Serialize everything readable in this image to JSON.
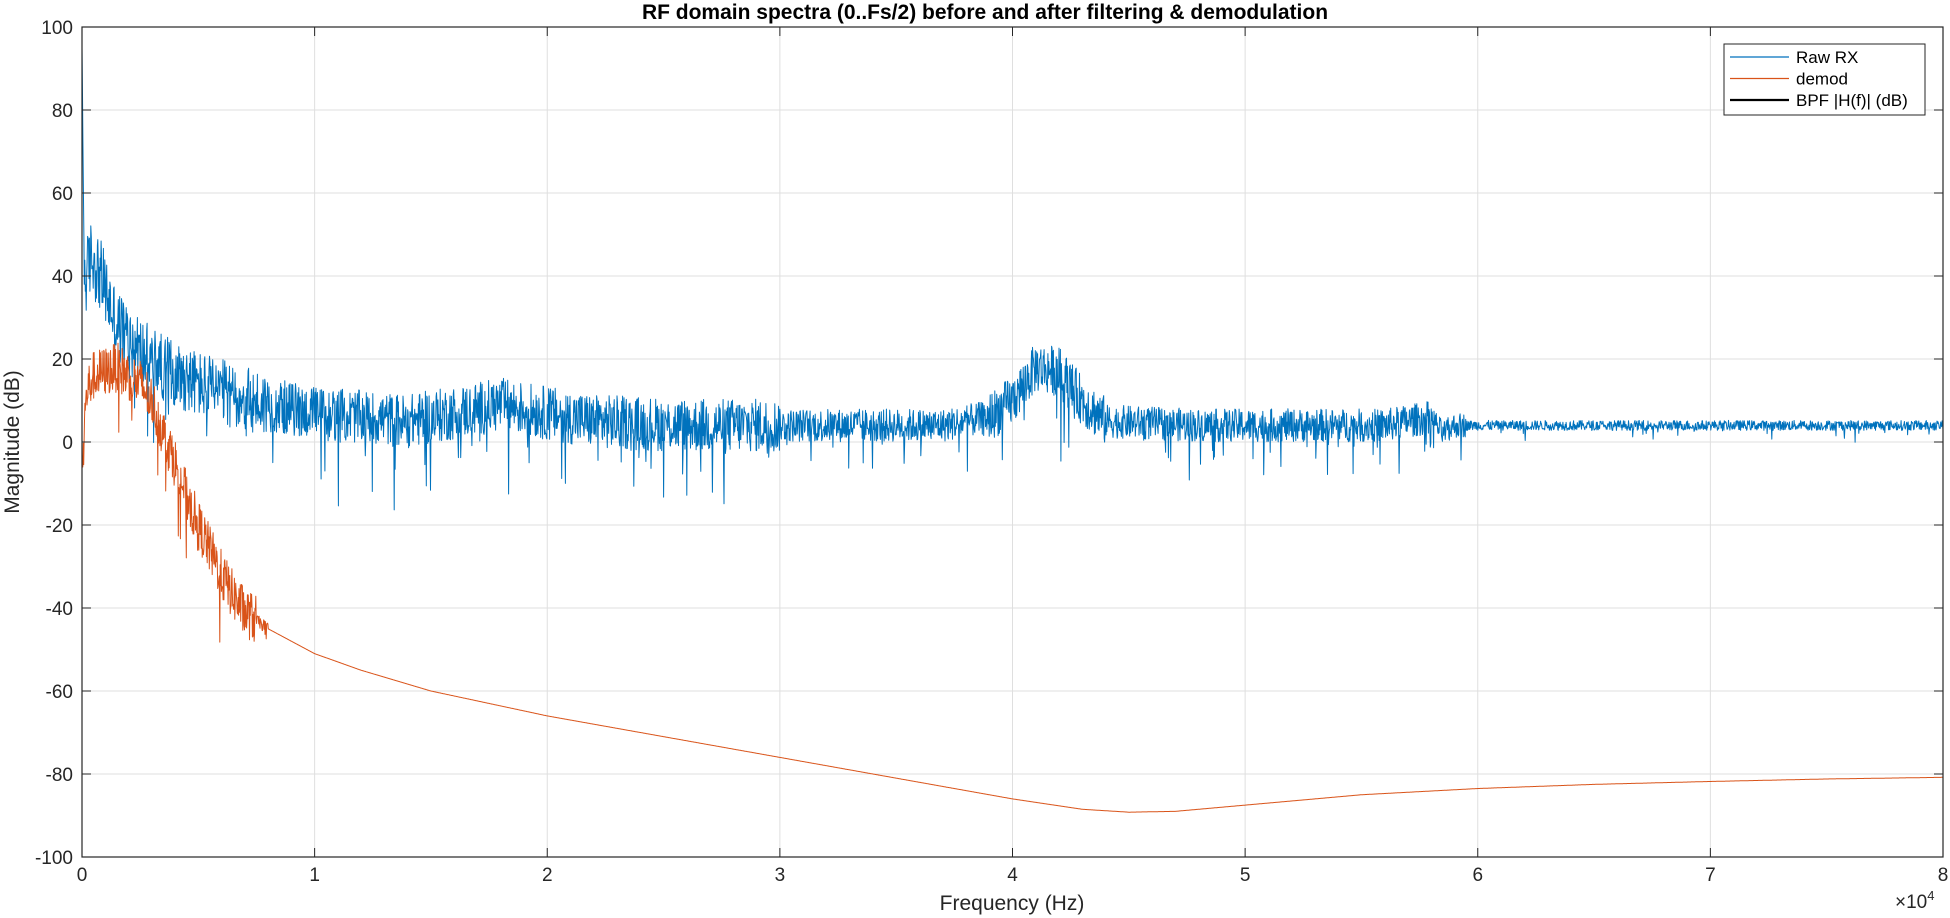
{
  "chart_data": {
    "type": "line",
    "title": "RF domain spectra (0..Fs/2) before and after filtering & demodulation",
    "xlabel": "Frequency (Hz)",
    "ylabel": "Magnitude (dB)",
    "x_multiplier_label": "×10",
    "x_multiplier_exponent": "4",
    "xlim": [
      0,
      80000
    ],
    "ylim": [
      -100,
      100
    ],
    "x_ticks": [
      0,
      10000,
      20000,
      30000,
      40000,
      50000,
      60000,
      70000,
      80000
    ],
    "x_tick_labels": [
      "0",
      "1",
      "2",
      "3",
      "4",
      "5",
      "6",
      "7",
      "8"
    ],
    "y_ticks": [
      -100,
      -80,
      -60,
      -40,
      -20,
      0,
      20,
      40,
      60,
      80,
      100
    ],
    "y_tick_labels": [
      "-100",
      "-80",
      "-60",
      "-40",
      "-20",
      "0",
      "20",
      "40",
      "60",
      "80",
      "100"
    ],
    "grid": true,
    "legend_position": "top-right",
    "series": [
      {
        "name": "Raw RX",
        "color": "#0072BD",
        "points": [
          [
            0,
            95
          ],
          [
            100,
            38
          ],
          [
            400,
            45
          ],
          [
            800,
            40
          ],
          [
            1500,
            28
          ],
          [
            2500,
            22
          ],
          [
            3500,
            18
          ],
          [
            5000,
            14
          ],
          [
            7000,
            10
          ],
          [
            10000,
            7
          ],
          [
            14000,
            5
          ],
          [
            18000,
            9
          ],
          [
            22000,
            5
          ],
          [
            26000,
            4
          ],
          [
            30000,
            4
          ],
          [
            34000,
            4
          ],
          [
            37000,
            4
          ],
          [
            39000,
            6
          ],
          [
            40000,
            10
          ],
          [
            41000,
            18
          ],
          [
            42000,
            17
          ],
          [
            43000,
            10
          ],
          [
            44000,
            5
          ],
          [
            48000,
            4
          ],
          [
            52000,
            4
          ],
          [
            56000,
            4
          ],
          [
            58000,
            6
          ],
          [
            58500,
            2
          ],
          [
            59000,
            4
          ],
          [
            62000,
            4
          ],
          [
            66000,
            4
          ],
          [
            70000,
            4
          ],
          [
            74000,
            4
          ],
          [
            78000,
            4
          ],
          [
            80000,
            4
          ]
        ]
      },
      {
        "name": "demod",
        "color": "#D95319",
        "points": [
          [
            0,
            -5
          ],
          [
            200,
            12
          ],
          [
            500,
            16
          ],
          [
            1000,
            17
          ],
          [
            1500,
            18
          ],
          [
            2000,
            16
          ],
          [
            2500,
            14
          ],
          [
            3000,
            10
          ],
          [
            3500,
            2
          ],
          [
            4000,
            -5
          ],
          [
            4500,
            -13
          ],
          [
            5000,
            -20
          ],
          [
            5500,
            -26
          ],
          [
            6000,
            -32
          ],
          [
            6500,
            -37
          ],
          [
            7000,
            -41
          ],
          [
            7500,
            -43
          ],
          [
            8000,
            -45
          ],
          [
            9000,
            -48
          ],
          [
            10000,
            -51
          ],
          [
            12000,
            -55
          ],
          [
            15000,
            -60
          ],
          [
            20000,
            -66
          ],
          [
            25000,
            -71
          ],
          [
            30000,
            -76
          ],
          [
            35000,
            -81
          ],
          [
            40000,
            -86
          ],
          [
            43000,
            -88.5
          ],
          [
            45000,
            -89.2
          ],
          [
            47000,
            -89
          ],
          [
            50000,
            -87.5
          ],
          [
            55000,
            -85
          ],
          [
            60000,
            -83.5
          ],
          [
            65000,
            -82.5
          ],
          [
            70000,
            -81.8
          ],
          [
            75000,
            -81.2
          ],
          [
            80000,
            -80.8
          ]
        ]
      },
      {
        "name": "BPF |H(f)| (dB)",
        "color": "#000000",
        "points": []
      }
    ]
  }
}
